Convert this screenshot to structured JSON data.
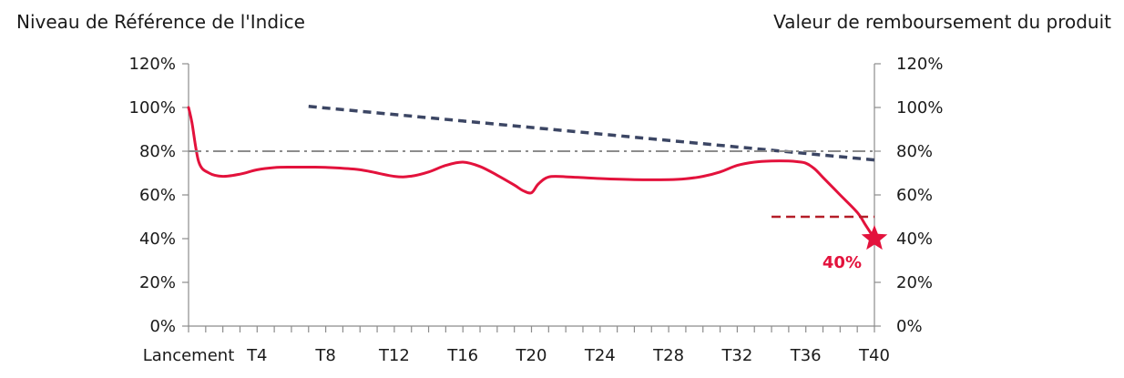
{
  "chart_data": {
    "type": "line",
    "ylabel_left": "Niveau de Référence de l'Indice",
    "ylabel_right": "Valeur de remboursement du produit",
    "y_ticks": [
      "0%",
      "20%",
      "40%",
      "60%",
      "80%",
      "100%",
      "120%"
    ],
    "ylim": [
      0,
      120
    ],
    "x_tick_labels": [
      "Lancement",
      "T4",
      "T8",
      "T12",
      "T16",
      "T20",
      "T24",
      "T28",
      "T32",
      "T36",
      "T40"
    ],
    "x_tick_values": [
      0,
      4,
      8,
      12,
      16,
      20,
      24,
      28,
      32,
      36,
      40
    ],
    "xlim": [
      0,
      40
    ],
    "series": [
      {
        "style": "solid",
        "color": "#e3123c",
        "x": [
          0,
          0.2,
          0.6,
          1.2,
          2,
          3,
          4,
          5,
          6,
          7,
          8,
          10,
          12,
          13,
          14,
          15,
          16,
          17,
          18,
          19,
          19.5,
          20,
          20.4,
          21,
          22,
          24,
          26,
          28,
          29,
          30,
          31,
          32,
          33,
          34,
          35,
          35.5,
          36,
          36.5,
          37,
          38,
          39,
          39.5,
          40
        ],
        "y": [
          100,
          93,
          75,
          70,
          68.5,
          69.5,
          71.5,
          72.5,
          72.7,
          72.7,
          72.6,
          71.5,
          68.5,
          68.6,
          70.5,
          73.5,
          75,
          73,
          69,
          64.5,
          62,
          61,
          65,
          68.2,
          68.3,
          67.5,
          67,
          67,
          67.4,
          68.5,
          70.5,
          73.5,
          75,
          75.5,
          75.5,
          75.2,
          74.5,
          72,
          68,
          60,
          52,
          46,
          40
        ]
      },
      {
        "style": "dashed",
        "color": "#3c4664",
        "x": [
          7,
          40
        ],
        "y": [
          100.5,
          76
        ]
      },
      {
        "style": "dash-dot",
        "color": "#8c8c8c",
        "x": [
          0,
          40
        ],
        "y": [
          80,
          80
        ]
      },
      {
        "style": "dashed",
        "color": "#b41e28",
        "x": [
          34,
          40
        ],
        "y": [
          50,
          50
        ]
      }
    ],
    "final_value": 40,
    "final_label": "40%",
    "marker": "star"
  }
}
